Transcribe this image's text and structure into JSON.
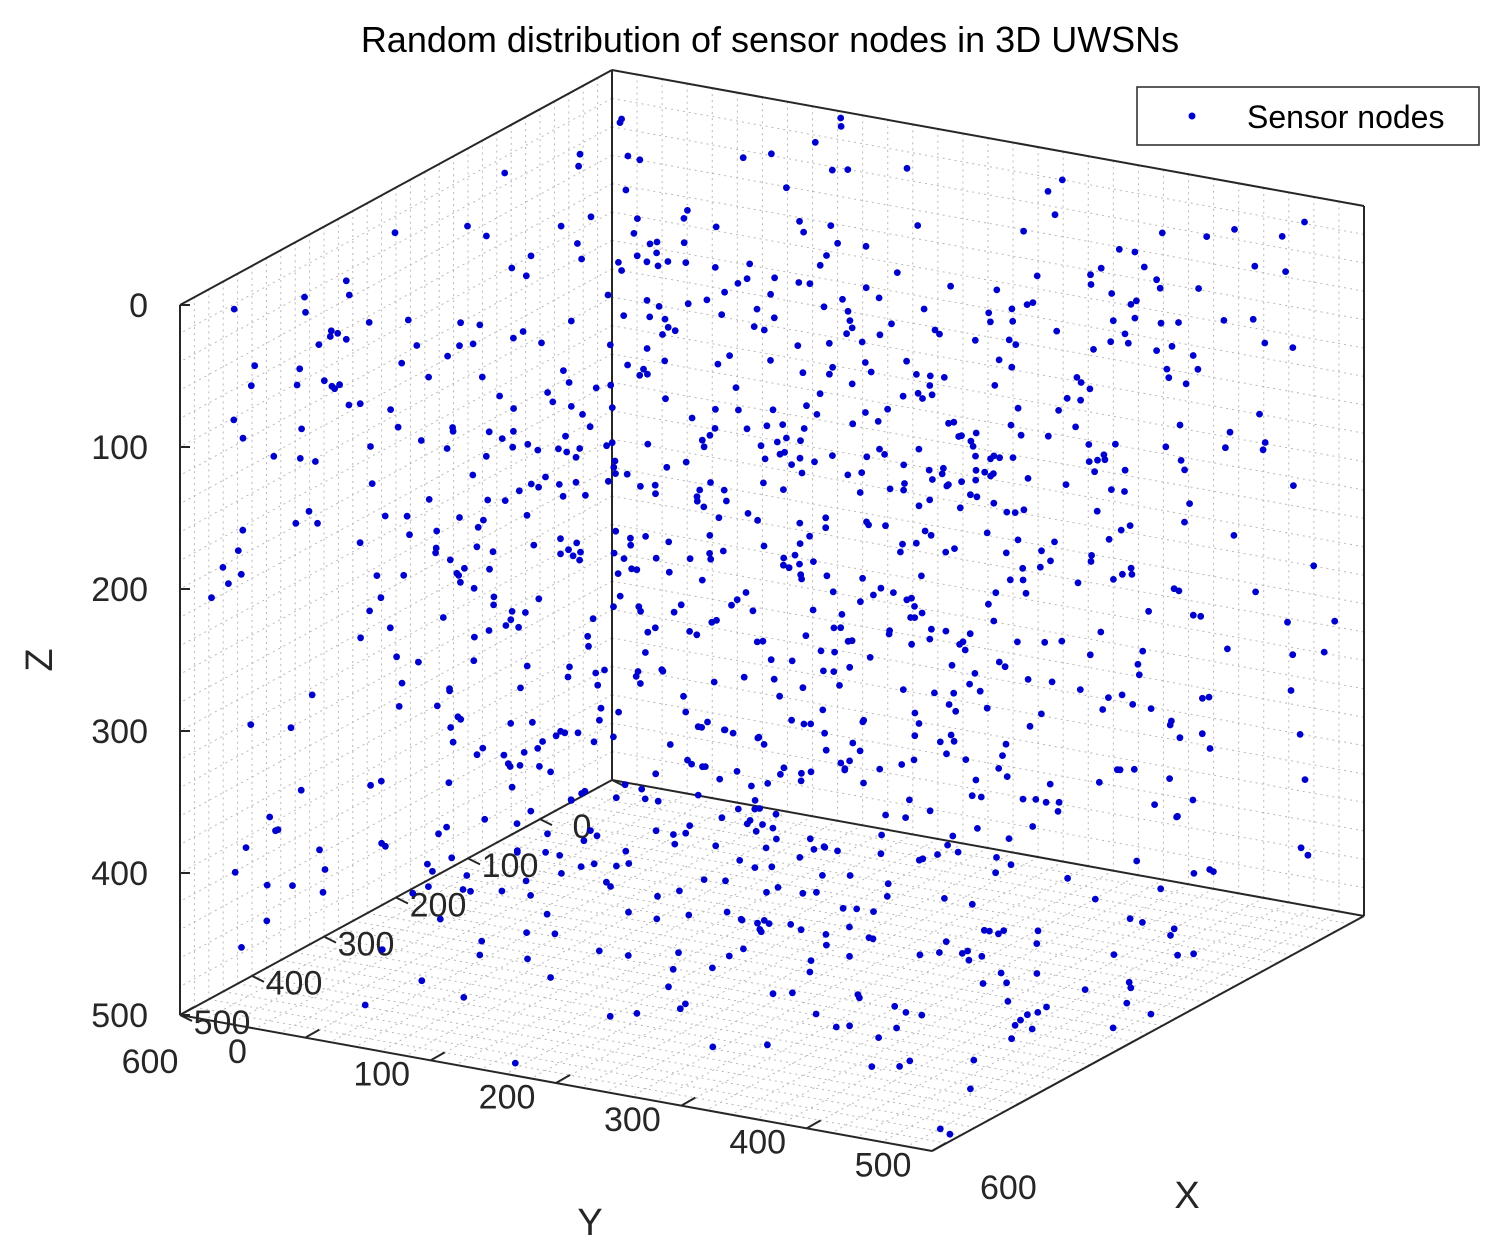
{
  "chart_data": {
    "type": "scatter",
    "title": "Random distribution of sensor nodes in 3D UWSNs",
    "xlabel": "X",
    "ylabel": "Y",
    "zlabel": "Z",
    "xlim": [
      0,
      600
    ],
    "ylim": [
      0,
      600
    ],
    "zlim": [
      0,
      500
    ],
    "z_reversed": true,
    "x_ticks": [
      "0",
      "100",
      "200",
      "300",
      "400",
      "500",
      "600"
    ],
    "y_ticks": [
      "0",
      "100",
      "200",
      "300",
      "400",
      "500",
      "600"
    ],
    "z_ticks": [
      "0",
      "100",
      "200",
      "300",
      "400",
      "500"
    ],
    "grid": true,
    "legend": {
      "position": "top-right",
      "entries": [
        "Sensor nodes"
      ]
    },
    "series": [
      {
        "name": "Sensor nodes",
        "color": "#0000cc",
        "marker": "dot",
        "count": 1000,
        "distribution": "uniform random over X 0-600, Y 0-600, Z 0-500"
      }
    ]
  }
}
